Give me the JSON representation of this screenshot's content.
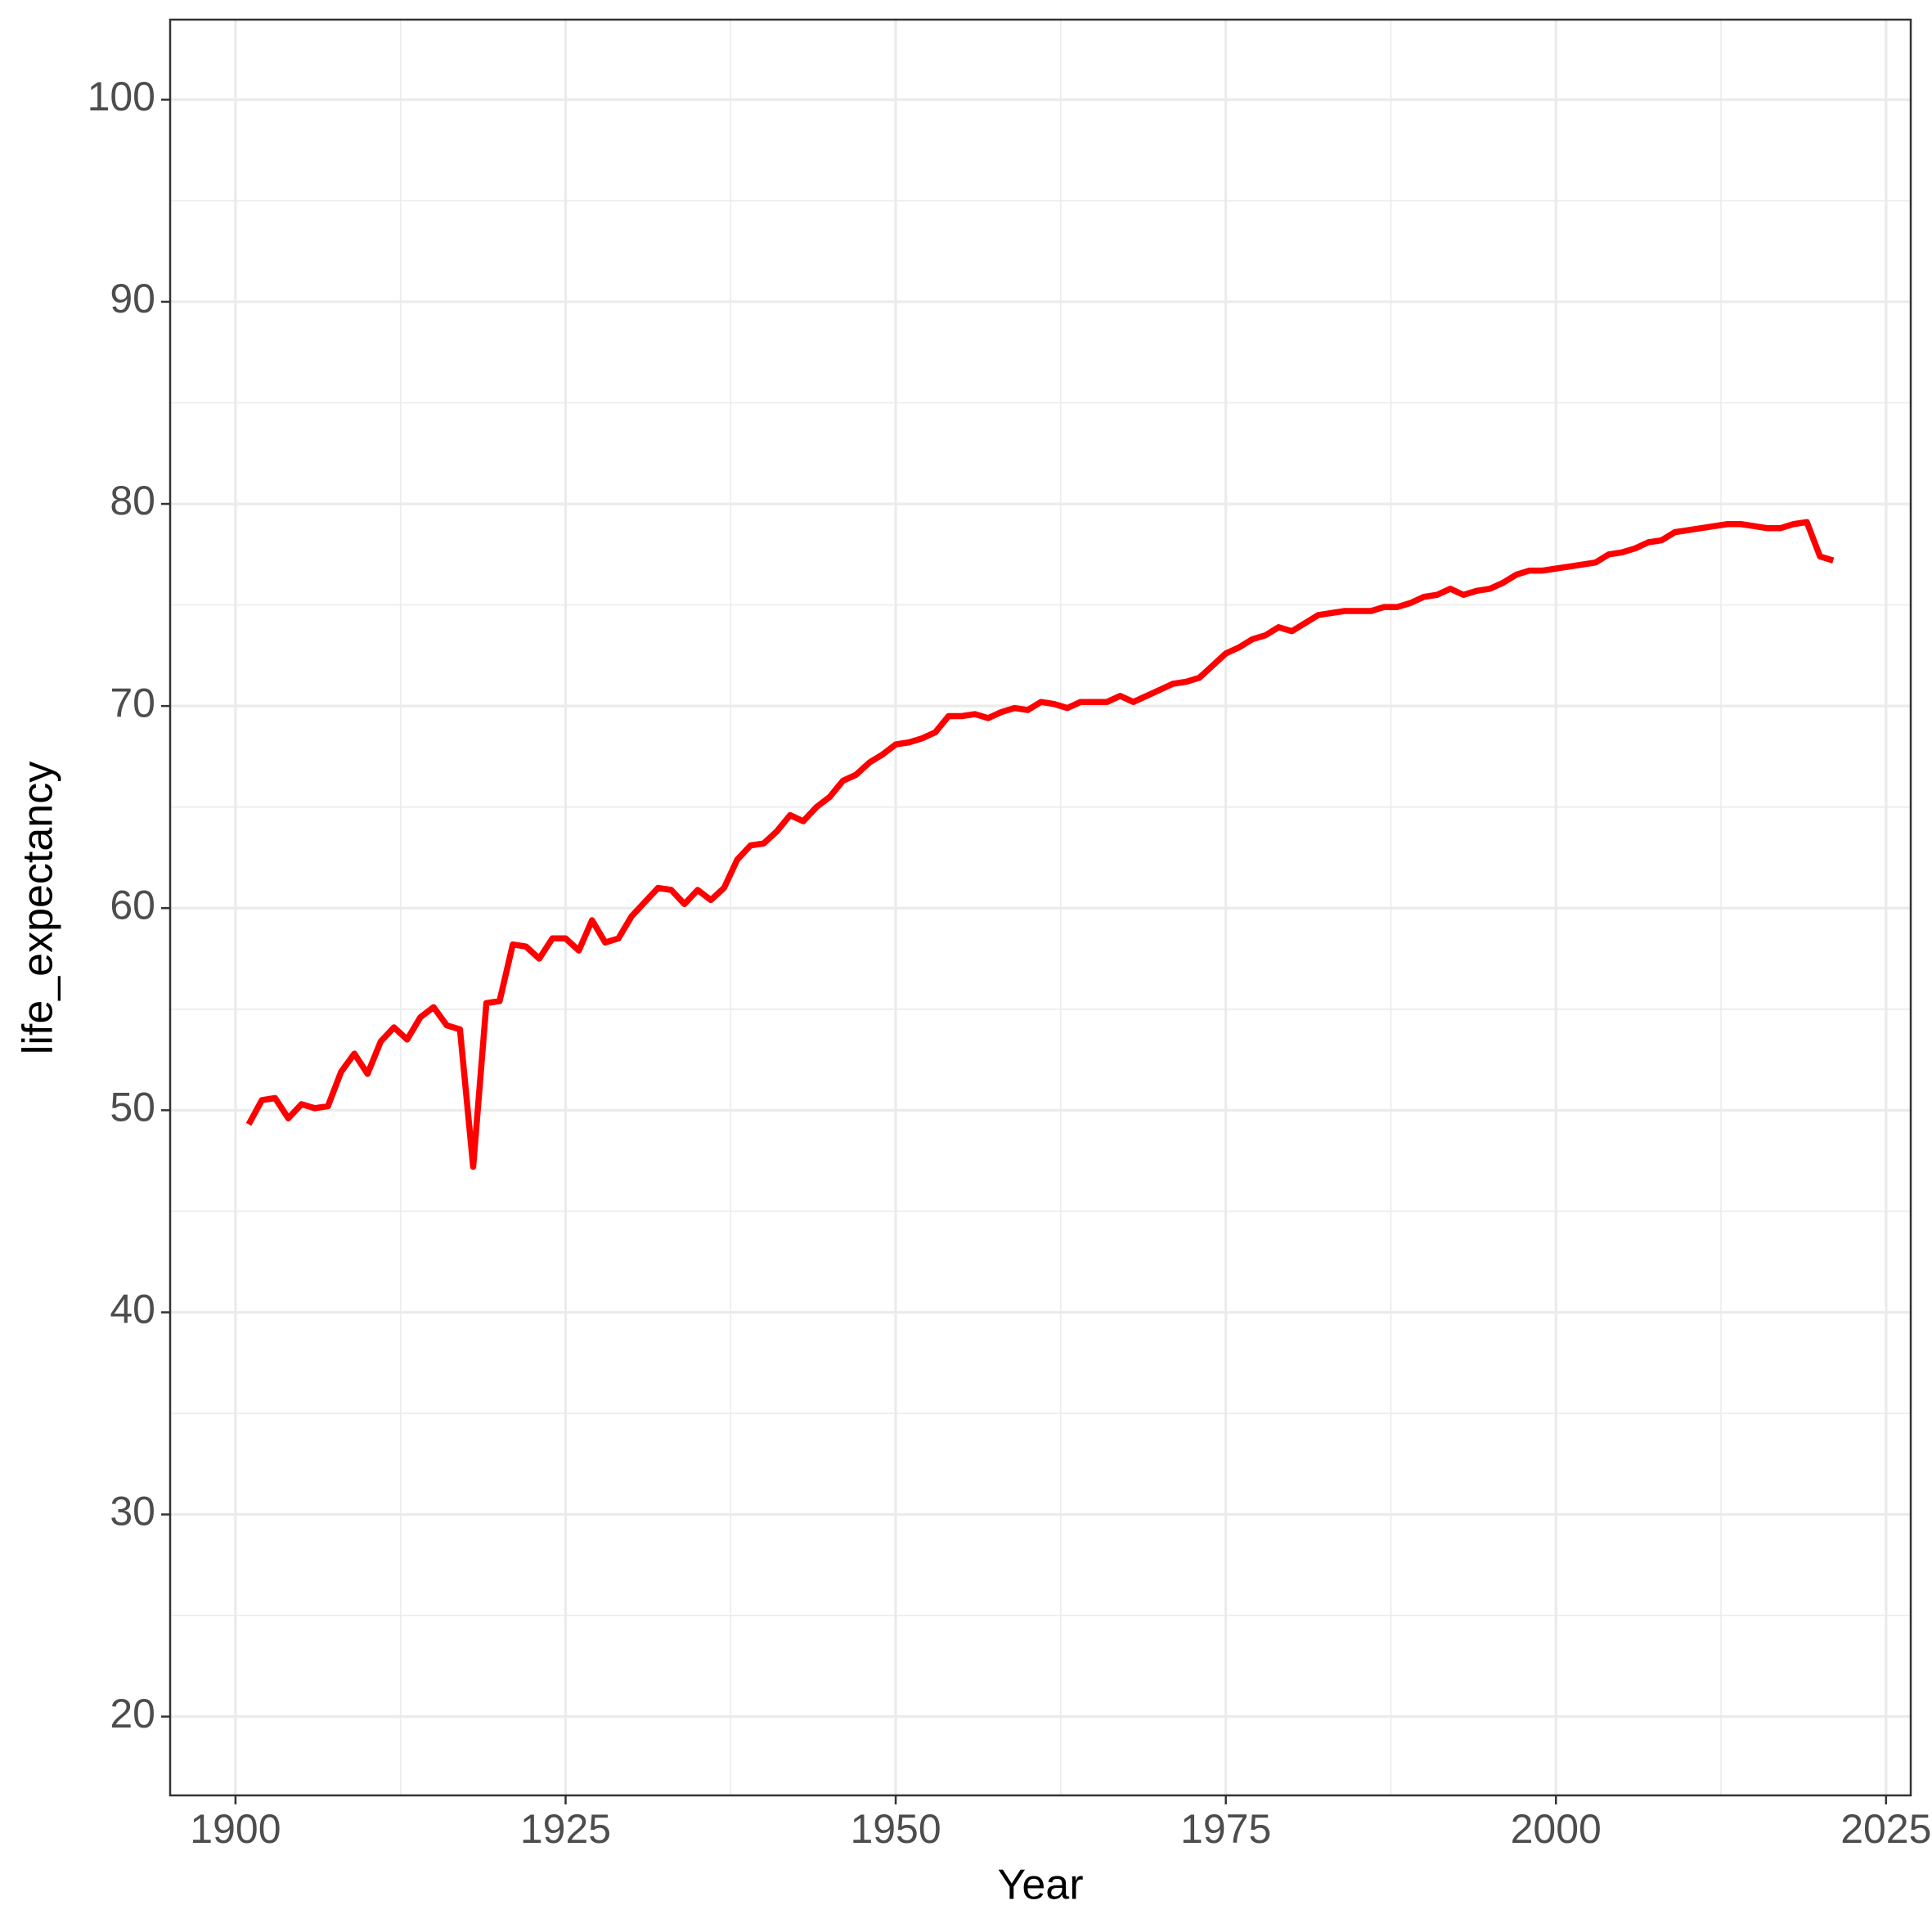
{
  "chart_data": {
    "type": "line",
    "x_label": "Year",
    "y_label": "life_expectancy",
    "x": [
      1901,
      1902,
      1903,
      1904,
      1905,
      1906,
      1907,
      1908,
      1909,
      1910,
      1911,
      1912,
      1913,
      1914,
      1915,
      1916,
      1917,
      1918,
      1919,
      1920,
      1921,
      1922,
      1923,
      1924,
      1925,
      1926,
      1927,
      1928,
      1929,
      1930,
      1931,
      1932,
      1933,
      1934,
      1935,
      1936,
      1937,
      1938,
      1939,
      1940,
      1941,
      1942,
      1943,
      1944,
      1945,
      1946,
      1947,
      1948,
      1949,
      1950,
      1951,
      1952,
      1953,
      1954,
      1955,
      1956,
      1957,
      1958,
      1959,
      1960,
      1961,
      1962,
      1963,
      1964,
      1965,
      1966,
      1967,
      1968,
      1969,
      1970,
      1971,
      1972,
      1973,
      1974,
      1975,
      1976,
      1977,
      1978,
      1979,
      1980,
      1981,
      1982,
      1983,
      1984,
      1985,
      1986,
      1987,
      1988,
      1989,
      1990,
      1991,
      1992,
      1993,
      1994,
      1995,
      1996,
      1997,
      1998,
      1999,
      2000,
      2001,
      2002,
      2003,
      2004,
      2005,
      2006,
      2007,
      2008,
      2009,
      2010,
      2011,
      2012,
      2013,
      2014,
      2015,
      2016,
      2017,
      2018,
      2019,
      2020,
      2021
    ],
    "series": [
      {
        "name": "life_expectancy",
        "color": "#ff0000",
        "values": [
          49.3,
          50.5,
          50.6,
          49.6,
          50.3,
          50.1,
          50.2,
          51.9,
          52.8,
          51.8,
          53.4,
          54.1,
          53.5,
          54.6,
          55.1,
          54.2,
          54.0,
          47.2,
          55.3,
          55.4,
          58.2,
          58.1,
          57.5,
          58.5,
          58.5,
          57.9,
          59.4,
          58.3,
          58.5,
          59.6,
          60.3,
          61.0,
          60.9,
          60.2,
          60.9,
          60.4,
          61.0,
          62.4,
          63.1,
          63.2,
          63.8,
          64.6,
          64.3,
          65.0,
          65.5,
          66.3,
          66.6,
          67.2,
          67.6,
          68.1,
          68.2,
          68.4,
          68.7,
          69.5,
          69.5,
          69.6,
          69.4,
          69.7,
          69.9,
          69.8,
          70.2,
          70.1,
          69.9,
          70.2,
          70.2,
          70.2,
          70.5,
          70.2,
          70.5,
          70.8,
          71.1,
          71.2,
          71.4,
          72.0,
          72.6,
          72.9,
          73.3,
          73.5,
          73.9,
          73.7,
          74.1,
          74.5,
          74.6,
          74.7,
          74.7,
          74.7,
          74.9,
          74.9,
          75.1,
          75.4,
          75.5,
          75.8,
          75.5,
          75.7,
          75.8,
          76.1,
          76.5,
          76.7,
          76.7,
          76.8,
          76.9,
          77.0,
          77.1,
          77.5,
          77.6,
          77.8,
          78.1,
          78.2,
          78.6,
          78.7,
          78.8,
          78.9,
          79.0,
          79.0,
          78.9,
          78.8,
          78.8,
          79.0,
          79.1,
          77.4,
          77.2
        ]
      }
    ],
    "xlim": [
      1895.05,
      2026.87
    ],
    "ylim": [
      16.1,
      103.96
    ],
    "xticks": [
      1900,
      1925,
      1950,
      1975,
      2000,
      2025
    ],
    "yticks": [
      20,
      30,
      40,
      50,
      60,
      70,
      80,
      90,
      100
    ],
    "grid": true,
    "minor_grid": true,
    "legend": false
  }
}
